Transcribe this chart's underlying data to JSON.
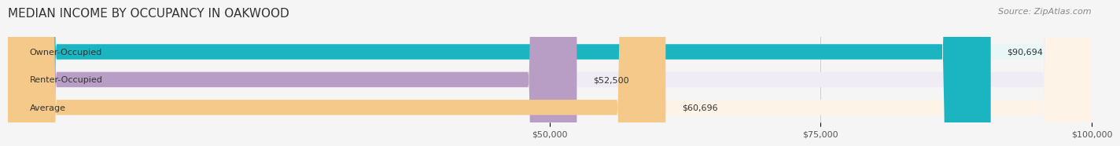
{
  "title": "MEDIAN INCOME BY OCCUPANCY IN OAKWOOD",
  "source": "Source: ZipAtlas.com",
  "categories": [
    "Owner-Occupied",
    "Renter-Occupied",
    "Average"
  ],
  "values": [
    90694,
    52500,
    60696
  ],
  "labels": [
    "$90,694",
    "$52,500",
    "$60,696"
  ],
  "bar_colors": [
    "#1ab5c0",
    "#b89ec4",
    "#f5c98a"
  ],
  "bar_bg_colors": [
    "#e8f6f7",
    "#f0ecf5",
    "#fdf3e7"
  ],
  "xlim": [
    0,
    100000
  ],
  "xticks": [
    50000,
    75000,
    100000
  ],
  "xtick_labels": [
    "$50,000",
    "$75,000",
    "$100,000"
  ],
  "title_fontsize": 11,
  "source_fontsize": 8,
  "label_fontsize": 8,
  "bar_label_fontsize": 8,
  "background_color": "#f5f5f5",
  "bar_height": 0.55
}
